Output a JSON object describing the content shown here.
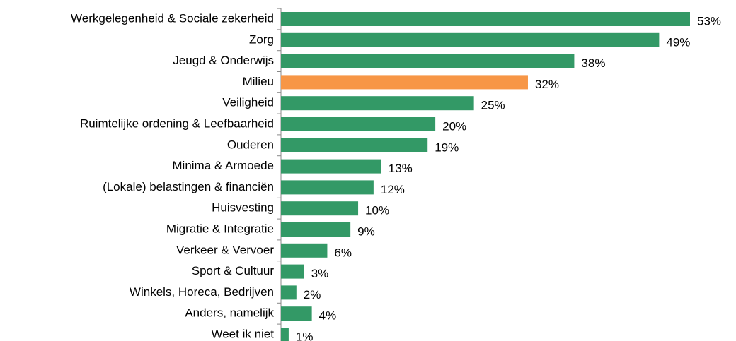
{
  "chart_data": {
    "type": "bar",
    "orientation": "horizontal",
    "categories": [
      "Werkgelegenheid & Sociale zekerheid",
      "Zorg",
      "Jeugd & Onderwijs",
      "Milieu",
      "Veiligheid",
      "Ruimtelijke ordening & Leefbaarheid",
      "Ouderen",
      "Minima & Armoede",
      "(Lokale) belastingen & financiën",
      "Huisvesting",
      "Migratie & Integratie",
      "Verkeer & Vervoer",
      "Sport & Cultuur",
      "Winkels, Horeca, Bedrijven",
      "Anders, namelijk",
      "Weet ik niet"
    ],
    "values": [
      53,
      49,
      38,
      32,
      25,
      20,
      19,
      13,
      12,
      10,
      9,
      6,
      3,
      2,
      4,
      1
    ],
    "value_labels": [
      "53%",
      "49%",
      "38%",
      "32%",
      "25%",
      "20%",
      "19%",
      "13%",
      "12%",
      "10%",
      "9%",
      "6%",
      "3%",
      "2%",
      "4%",
      "1%"
    ],
    "colors": [
      "#339966",
      "#339966",
      "#339966",
      "#f79646",
      "#339966",
      "#339966",
      "#339966",
      "#339966",
      "#339966",
      "#339966",
      "#339966",
      "#339966",
      "#339966",
      "#339966",
      "#339966",
      "#339966"
    ]
  }
}
